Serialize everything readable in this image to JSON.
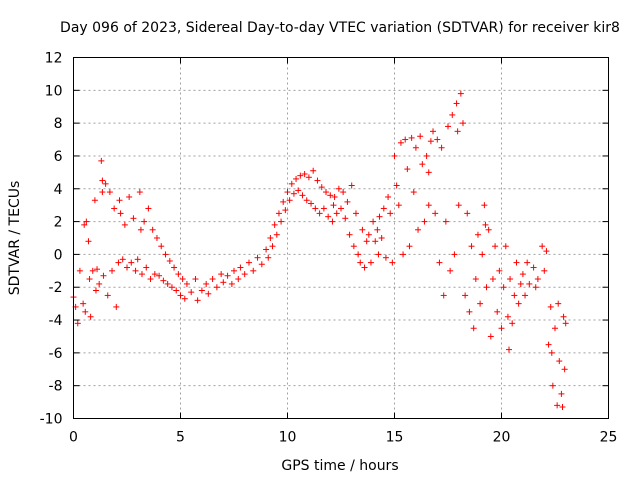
{
  "chart_data": {
    "type": "scatter",
    "title": "Day 096 of 2023, Sidereal Day-to-day VTEC variation (SDTVAR) for receiver kir8",
    "xlabel": "GPS time / hours",
    "ylabel": "SDTVAR / TECUs",
    "xlim": [
      0,
      25
    ],
    "ylim": [
      -10,
      12
    ],
    "x_ticks": [
      0,
      5,
      10,
      15,
      20,
      25
    ],
    "y_ticks": [
      -10,
      -8,
      -6,
      -4,
      -2,
      0,
      2,
      4,
      6,
      8,
      10,
      12
    ],
    "grid": true,
    "marker": "+",
    "color": "#ff0000",
    "series": [
      {
        "name": "SDTVAR",
        "points": [
          [
            0.0,
            -2.6
          ],
          [
            0.1,
            -3.2
          ],
          [
            0.2,
            -4.2
          ],
          [
            0.3,
            -1.0
          ],
          [
            0.45,
            -3.0
          ],
          [
            0.5,
            1.8
          ],
          [
            0.55,
            -3.5
          ],
          [
            0.6,
            2.0
          ],
          [
            0.7,
            0.8
          ],
          [
            0.75,
            -1.5
          ],
          [
            0.8,
            -3.8
          ],
          [
            0.9,
            -1.0
          ],
          [
            1.0,
            3.3
          ],
          [
            1.05,
            -2.2
          ],
          [
            1.1,
            -0.9
          ],
          [
            1.2,
            -1.8
          ],
          [
            1.3,
            5.7
          ],
          [
            1.35,
            3.8
          ],
          [
            1.4,
            -1.3
          ],
          [
            1.5,
            4.3
          ],
          [
            1.6,
            -2.5
          ],
          [
            1.7,
            3.8
          ],
          [
            1.8,
            -1.0
          ],
          [
            1.9,
            2.8
          ],
          [
            2.0,
            -3.2
          ],
          [
            2.1,
            -0.5
          ],
          [
            2.2,
            2.5
          ],
          [
            2.3,
            -0.3
          ],
          [
            2.4,
            1.8
          ],
          [
            2.5,
            -0.8
          ],
          [
            2.6,
            3.5
          ],
          [
            2.7,
            -0.5
          ],
          [
            2.8,
            2.2
          ],
          [
            2.9,
            -1.0
          ],
          [
            3.0,
            -0.3
          ],
          [
            3.1,
            3.8
          ],
          [
            3.2,
            -1.2
          ],
          [
            3.3,
            2.0
          ],
          [
            3.4,
            -0.8
          ],
          [
            3.5,
            2.8
          ],
          [
            3.6,
            -1.5
          ],
          [
            3.7,
            1.5
          ],
          [
            3.8,
            -1.2
          ],
          [
            3.9,
            1.0
          ],
          [
            4.0,
            -1.3
          ],
          [
            4.1,
            0.5
          ],
          [
            4.2,
            -1.6
          ],
          [
            4.3,
            0.0
          ],
          [
            4.4,
            -1.8
          ],
          [
            4.5,
            -0.4
          ],
          [
            4.6,
            -2.0
          ],
          [
            4.7,
            -0.8
          ],
          [
            4.8,
            -2.2
          ],
          [
            4.9,
            -1.2
          ],
          [
            5.0,
            -2.5
          ],
          [
            5.1,
            -1.5
          ],
          [
            5.2,
            -2.7
          ],
          [
            5.3,
            -1.8
          ],
          [
            5.5,
            -2.3
          ],
          [
            5.7,
            -1.5
          ],
          [
            5.8,
            -2.8
          ],
          [
            6.0,
            -2.2
          ],
          [
            6.2,
            -1.8
          ],
          [
            6.3,
            -2.4
          ],
          [
            6.5,
            -1.5
          ],
          [
            6.7,
            -2.0
          ],
          [
            6.9,
            -1.2
          ],
          [
            7.0,
            -1.7
          ],
          [
            7.2,
            -1.3
          ],
          [
            7.4,
            -1.8
          ],
          [
            7.5,
            -1.0
          ],
          [
            7.7,
            -1.5
          ],
          [
            7.8,
            -0.8
          ],
          [
            8.0,
            -1.2
          ],
          [
            8.2,
            -0.5
          ],
          [
            8.4,
            -1.0
          ],
          [
            8.6,
            -0.2
          ],
          [
            8.8,
            -0.6
          ],
          [
            9.0,
            0.3
          ],
          [
            9.1,
            -0.2
          ],
          [
            9.2,
            1.0
          ],
          [
            9.3,
            0.5
          ],
          [
            9.4,
            1.8
          ],
          [
            9.5,
            1.2
          ],
          [
            9.6,
            2.5
          ],
          [
            9.7,
            2.0
          ],
          [
            9.8,
            3.2
          ],
          [
            9.9,
            2.7
          ],
          [
            10.0,
            3.8
          ],
          [
            10.1,
            3.3
          ],
          [
            10.2,
            4.3
          ],
          [
            10.3,
            3.7
          ],
          [
            10.4,
            4.6
          ],
          [
            10.5,
            3.9
          ],
          [
            10.6,
            4.8
          ],
          [
            10.7,
            3.6
          ],
          [
            10.8,
            4.9
          ],
          [
            10.9,
            3.3
          ],
          [
            11.0,
            4.7
          ],
          [
            11.1,
            3.1
          ],
          [
            11.2,
            5.1
          ],
          [
            11.3,
            2.8
          ],
          [
            11.4,
            4.5
          ],
          [
            11.5,
            2.5
          ],
          [
            11.6,
            4.1
          ],
          [
            11.7,
            2.8
          ],
          [
            11.8,
            3.8
          ],
          [
            11.9,
            2.3
          ],
          [
            12.0,
            3.6
          ],
          [
            12.1,
            2.0
          ],
          [
            12.2,
            3.5
          ],
          [
            12.3,
            2.5
          ],
          [
            12.4,
            4.0
          ],
          [
            12.5,
            2.8
          ],
          [
            12.6,
            3.8
          ],
          [
            12.7,
            2.2
          ],
          [
            12.8,
            3.2
          ],
          [
            12.9,
            1.2
          ],
          [
            13.0,
            4.2
          ],
          [
            13.1,
            0.5
          ],
          [
            13.2,
            2.5
          ],
          [
            13.3,
            0.0
          ],
          [
            13.4,
            -0.5
          ],
          [
            13.5,
            1.5
          ],
          [
            13.6,
            -0.8
          ],
          [
            13.7,
            0.8
          ],
          [
            13.8,
            1.2
          ],
          [
            13.9,
            -0.5
          ],
          [
            14.0,
            2.0
          ],
          [
            14.1,
            0.8
          ],
          [
            14.2,
            1.5
          ],
          [
            14.3,
            2.3
          ],
          [
            14.4,
            1.0
          ],
          [
            14.5,
            2.8
          ],
          [
            14.6,
            -0.2
          ],
          [
            14.7,
            3.5
          ],
          [
            14.8,
            2.5
          ],
          [
            14.9,
            -0.5
          ],
          [
            15.0,
            6.0
          ],
          [
            15.1,
            4.2
          ],
          [
            15.2,
            3.0
          ],
          [
            15.3,
            6.8
          ],
          [
            15.4,
            0.0
          ],
          [
            15.5,
            7.0
          ],
          [
            15.6,
            5.2
          ],
          [
            15.7,
            0.5
          ],
          [
            15.8,
            7.1
          ],
          [
            15.9,
            3.8
          ],
          [
            16.0,
            6.5
          ],
          [
            16.1,
            1.5
          ],
          [
            16.2,
            7.2
          ],
          [
            16.3,
            5.5
          ],
          [
            16.4,
            2.0
          ],
          [
            16.5,
            6.0
          ],
          [
            16.6,
            3.0
          ],
          [
            16.7,
            6.9
          ],
          [
            16.8,
            7.5
          ],
          [
            16.9,
            2.5
          ],
          [
            17.0,
            7.0
          ],
          [
            17.1,
            -0.5
          ],
          [
            17.2,
            6.5
          ],
          [
            17.3,
            -2.5
          ],
          [
            17.4,
            2.0
          ],
          [
            17.5,
            7.8
          ],
          [
            17.6,
            -1.0
          ],
          [
            17.7,
            8.5
          ],
          [
            17.8,
            0.0
          ],
          [
            17.9,
            9.2
          ],
          [
            18.0,
            3.0
          ],
          [
            18.1,
            9.8
          ],
          [
            18.2,
            8.0
          ],
          [
            18.3,
            -2.5
          ],
          [
            18.4,
            2.5
          ],
          [
            18.5,
            -3.5
          ],
          [
            18.6,
            0.5
          ],
          [
            18.7,
            -4.5
          ],
          [
            18.8,
            -1.5
          ],
          [
            18.9,
            1.2
          ],
          [
            19.0,
            -3.0
          ],
          [
            19.1,
            0.0
          ],
          [
            19.2,
            3.0
          ],
          [
            19.3,
            -2.0
          ],
          [
            19.4,
            1.5
          ],
          [
            19.5,
            -5.0
          ],
          [
            19.6,
            -1.5
          ],
          [
            19.7,
            0.5
          ],
          [
            19.8,
            -3.5
          ],
          [
            19.9,
            -1.0
          ],
          [
            20.0,
            -4.5
          ],
          [
            20.1,
            -2.0
          ],
          [
            20.2,
            0.5
          ],
          [
            20.3,
            -3.8
          ],
          [
            20.4,
            -1.5
          ],
          [
            20.5,
            -4.2
          ],
          [
            20.6,
            -2.5
          ],
          [
            20.7,
            -0.5
          ],
          [
            20.8,
            -3.0
          ],
          [
            20.9,
            -1.8
          ],
          [
            21.0,
            -1.2
          ],
          [
            21.1,
            -2.5
          ],
          [
            21.2,
            -0.5
          ],
          [
            21.3,
            -1.8
          ],
          [
            21.5,
            -0.8
          ],
          [
            21.7,
            -1.5
          ],
          [
            21.9,
            0.5
          ],
          [
            22.0,
            -1.0
          ],
          [
            22.1,
            0.2
          ],
          [
            22.2,
            -5.5
          ],
          [
            22.3,
            -3.2
          ],
          [
            22.4,
            -8.0
          ],
          [
            22.5,
            -4.5
          ],
          [
            22.6,
            -9.2
          ],
          [
            22.7,
            -6.5
          ],
          [
            22.8,
            -8.5
          ],
          [
            22.9,
            -3.8
          ],
          [
            23.0,
            -4.2
          ],
          [
            22.95,
            -7.0
          ],
          [
            22.85,
            -9.3
          ],
          [
            22.65,
            -3.0
          ],
          [
            22.35,
            -6.0
          ],
          [
            1.35,
            4.5
          ],
          [
            2.15,
            3.3
          ],
          [
            3.15,
            1.5
          ],
          [
            16.6,
            5.0
          ],
          [
            17.95,
            7.5
          ],
          [
            19.25,
            1.8
          ],
          [
            20.35,
            -5.8
          ],
          [
            21.6,
            -2.0
          ],
          [
            14.25,
            0.0
          ],
          [
            12.15,
            3.0
          ]
        ]
      }
    ]
  }
}
